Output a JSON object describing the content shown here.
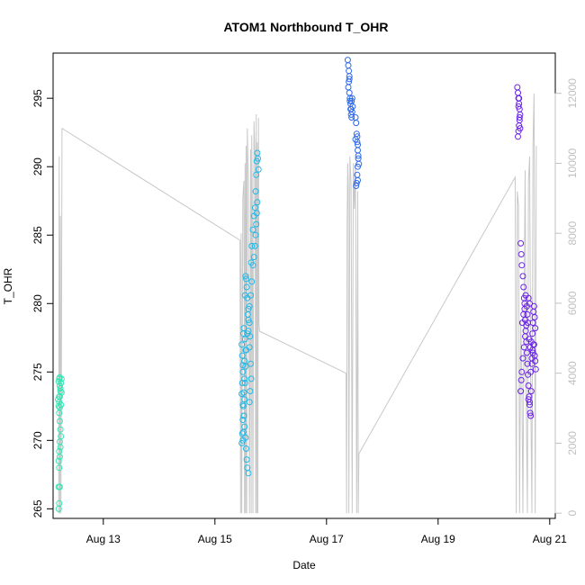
{
  "chart_data": {
    "type": "scatter",
    "title": "ATOM1 Northbound T_OHR",
    "xlabel": "Date",
    "ylabel": "T_OHR",
    "x_ticks": [
      {
        "label": "Aug 13",
        "day": 13
      },
      {
        "label": "Aug 15",
        "day": 15
      },
      {
        "label": "Aug 17",
        "day": 17
      },
      {
        "label": "Aug 19",
        "day": 19
      },
      {
        "label": "Aug 21",
        "day": 21
      }
    ],
    "y_ticks": [
      265,
      270,
      275,
      280,
      285,
      290,
      295
    ],
    "y2_ticks": [
      0,
      2000,
      4000,
      6000,
      8000,
      10000,
      12000
    ],
    "xlim": [
      12.1,
      21.1
    ],
    "ylim": [
      264.3,
      298.3
    ],
    "y2lim": [
      -150,
      13150
    ],
    "grid": false,
    "legend": "none",
    "colors": {
      "secondary_line": "#c8c8c8",
      "right_axis": "#c0c0c0"
    },
    "series": [
      {
        "color": "#33e6b3",
        "x": [
          12.2,
          12.21,
          12.2,
          12.22,
          12.21,
          12.2,
          12.22,
          12.21,
          12.23,
          12.22,
          12.24,
          12.23,
          12.22,
          12.21,
          12.2,
          12.19,
          12.21,
          12.22,
          12.24,
          12.25,
          12.23,
          12.22,
          12.2,
          12.21,
          12.22,
          12.24,
          12.25,
          12.23,
          12.22,
          12.21
        ],
        "y": [
          265.0,
          265.4,
          266.6,
          266.6,
          268.0,
          268.5,
          268.8,
          269.2,
          269.5,
          269.9,
          270.3,
          270.8,
          271.4,
          272.0,
          272.5,
          273.0,
          273.2,
          272.4,
          272.6,
          273.5,
          273.8,
          274.0,
          274.3,
          274.5,
          274.6,
          274.2,
          274.5,
          273.6,
          273.2,
          272.8
        ]
      },
      {
        "color": "#22b8e8",
        "x": [
          15.48,
          15.49,
          15.5,
          15.51,
          15.52,
          15.53,
          15.5,
          15.49,
          15.48,
          15.51,
          15.52,
          15.54,
          15.55,
          15.53,
          15.5,
          15.49,
          15.48,
          15.5,
          15.52,
          15.53,
          15.55,
          15.56,
          15.57,
          15.58,
          15.6,
          15.62,
          15.63,
          15.65,
          15.64,
          15.62,
          15.6,
          15.59,
          15.58,
          15.57,
          15.56,
          15.55,
          15.54,
          15.6,
          15.62,
          15.63,
          15.65,
          15.66,
          15.68,
          15.7,
          15.72,
          15.73,
          15.74,
          15.75,
          15.76,
          15.77,
          15.78,
          15.76,
          15.75,
          15.74,
          15.73,
          15.72,
          15.7,
          15.68,
          15.66,
          15.64,
          15.62,
          15.6,
          15.58,
          15.56,
          15.55,
          15.54,
          15.53,
          15.52,
          15.51,
          15.5
        ],
        "y": [
          269.8,
          270.5,
          271.5,
          272.5,
          273.5,
          274.5,
          275.5,
          276.2,
          277.0,
          277.8,
          278.2,
          277.4,
          276.6,
          275.8,
          275.0,
          274.2,
          273.4,
          272.6,
          271.8,
          271.0,
          270.2,
          269.4,
          268.6,
          268.0,
          267.6,
          272.8,
          273.6,
          274.5,
          275.6,
          276.8,
          278.0,
          279.2,
          280.4,
          281.2,
          281.8,
          282.0,
          280.6,
          279.6,
          278.6,
          277.6,
          283.0,
          284.2,
          285.4,
          286.4,
          287.0,
          288.2,
          289.4,
          290.4,
          291.0,
          290.6,
          289.8,
          287.4,
          286.6,
          285.8,
          285.0,
          284.2,
          283.4,
          282.8,
          281.6,
          280.6,
          279.8,
          278.8,
          277.8,
          276.6,
          275.4,
          274.2,
          273.0,
          271.8,
          270.6,
          270.0
        ]
      },
      {
        "color": "#2f6ae8",
        "x": [
          17.38,
          17.39,
          17.4,
          17.41,
          17.4,
          17.39,
          17.41,
          17.42,
          17.43,
          17.44,
          17.45,
          17.46,
          17.47,
          17.46,
          17.45,
          17.44,
          17.43,
          17.42,
          17.41,
          17.52,
          17.53,
          17.54,
          17.55,
          17.56,
          17.57,
          17.56,
          17.55,
          17.54,
          17.53,
          17.52,
          17.55,
          17.56,
          17.57,
          17.58,
          17.56
        ],
        "y": [
          297.8,
          297.4,
          297.0,
          296.6,
          296.2,
          295.8,
          295.4,
          295.0,
          294.6,
          294.2,
          294.8,
          295.0,
          294.4,
          294.0,
          293.6,
          293.8,
          294.2,
          294.8,
          296.4,
          293.6,
          293.2,
          292.4,
          291.8,
          291.2,
          290.6,
          290.0,
          289.4,
          288.8,
          288.6,
          292.0,
          292.2,
          291.6,
          290.8,
          290.2,
          289.0
        ]
      },
      {
        "color": "#6a22e8",
        "x": [
          20.42,
          20.43,
          20.44,
          20.45,
          20.46,
          20.47,
          20.46,
          20.45,
          20.44,
          20.43,
          20.44,
          20.45,
          20.46,
          20.47,
          20.48,
          20.49,
          20.5,
          20.52,
          20.53,
          20.54,
          20.55,
          20.56,
          20.57,
          20.58,
          20.59,
          20.6,
          20.61,
          20.62,
          20.63,
          20.64,
          20.65,
          20.66,
          20.67,
          20.68,
          20.69,
          20.7,
          20.71,
          20.72,
          20.73,
          20.74,
          20.72,
          20.7,
          20.68,
          20.66,
          20.64,
          20.62,
          20.6,
          20.58,
          20.56,
          20.54,
          20.52,
          20.5,
          20.49,
          20.48,
          20.51,
          20.53,
          20.55,
          20.57,
          20.59,
          20.61,
          20.63,
          20.65,
          20.67,
          20.69,
          20.71,
          20.73,
          20.74,
          20.75,
          20.62,
          20.64
        ],
        "y": [
          295.8,
          295.4,
          295.0,
          294.6,
          294.2,
          293.8,
          293.4,
          293.0,
          292.6,
          292.2,
          294.4,
          295.0,
          293.6,
          292.8,
          284.4,
          283.6,
          282.8,
          282.0,
          281.2,
          280.4,
          279.6,
          278.8,
          278.0,
          277.2,
          276.4,
          275.6,
          274.8,
          274.0,
          273.2,
          272.6,
          272.0,
          271.8,
          273.6,
          276.0,
          277.8,
          278.6,
          279.4,
          279.8,
          279.0,
          278.2,
          277.0,
          276.4,
          275.6,
          275.0,
          280.0,
          280.4,
          279.2,
          278.4,
          277.6,
          276.8,
          276.0,
          275.0,
          274.4,
          273.6,
          278.6,
          279.2,
          280.0,
          280.6,
          279.8,
          278.6,
          277.4,
          276.8,
          277.2,
          276.6,
          277.0,
          276.2,
          275.8,
          275.2,
          273.0,
          272.8
        ]
      }
    ],
    "secondary_line": {
      "x": [
        12.2,
        12.21,
        12.22,
        12.23,
        12.24,
        12.25,
        12.26,
        15.45,
        15.46,
        15.47,
        15.48,
        15.5,
        15.52,
        15.53,
        15.54,
        15.55,
        15.56,
        15.57,
        15.58,
        15.6,
        15.62,
        15.64,
        15.65,
        15.66,
        15.67,
        15.68,
        15.7,
        15.72,
        15.73,
        15.74,
        15.75,
        15.76,
        15.77,
        15.78,
        15.79,
        15.8,
        17.35,
        17.36,
        17.37,
        17.38,
        17.39,
        17.4,
        17.42,
        17.44,
        17.46,
        17.48,
        17.5,
        17.52,
        17.54,
        17.56,
        17.57,
        17.58,
        20.38,
        20.4,
        20.42,
        20.44,
        20.46,
        20.48,
        20.5,
        20.52,
        20.54,
        20.56,
        20.58,
        20.6,
        20.62,
        20.64,
        20.66,
        20.68,
        20.7,
        20.72,
        20.74,
        20.76
      ],
      "y": [
        0,
        10200,
        0,
        8500,
        0,
        4500,
        11000,
        7800,
        0,
        8000,
        0,
        9000,
        9500,
        0,
        10000,
        0,
        10500,
        0,
        11000,
        9500,
        0,
        10400,
        0,
        10800,
        9000,
        0,
        11200,
        10200,
        0,
        11400,
        0,
        10600,
        0,
        11300,
        5400,
        5200,
        4000,
        0,
        8200,
        10000,
        9400,
        0,
        10200,
        9400,
        0,
        10000,
        8700,
        10000,
        0,
        9200,
        0,
        1700,
        9600,
        0,
        9200,
        8800,
        0,
        5500,
        4000,
        0,
        6000,
        9800,
        3000,
        0,
        9500,
        10200,
        3500,
        0,
        10500,
        12000,
        0,
        10500
      ]
    }
  }
}
